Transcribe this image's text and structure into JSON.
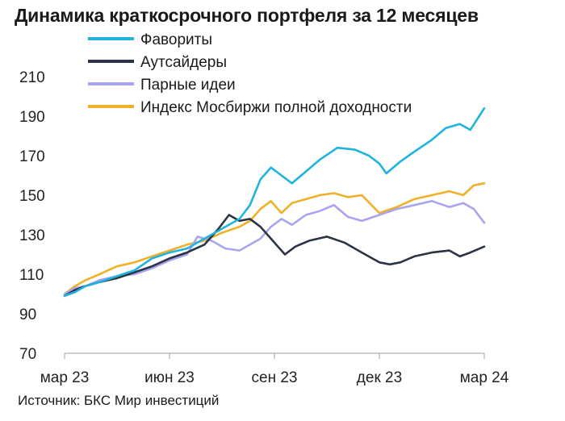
{
  "header": {
    "title": "Динамика краткосрочного портфеля за 12 месяцев"
  },
  "footer": {
    "source": "Источник: БКС Мир инвестиций"
  },
  "chart_data": {
    "type": "line",
    "title": "Динамика краткосрочного портфеля за 12 месяцев",
    "xlabel": "",
    "ylabel": "",
    "ylim": [
      70,
      210
    ],
    "yticks": [
      70,
      90,
      110,
      130,
      150,
      170,
      190,
      210
    ],
    "x_tick_labels": [
      "мар 23",
      "июн 23",
      "сен 23",
      "дек 23",
      "мар 24"
    ],
    "x_tick_months": [
      0,
      3,
      6,
      9,
      12
    ],
    "grid": false,
    "legend": "top",
    "series": [
      {
        "name": "Фавориты",
        "color": "#1fb3dd",
        "x": [
          0,
          0.3,
          0.6,
          1,
          1.5,
          2,
          2.5,
          3,
          3.5,
          4,
          4.5,
          5,
          5.3,
          5.6,
          5.9,
          6.2,
          6.5,
          6.9,
          7.3,
          7.8,
          8.3,
          8.7,
          9,
          9.2,
          9.6,
          10,
          10.5,
          10.9,
          11.3,
          11.6,
          12
        ],
        "y": [
          99,
          101,
          104,
          106,
          109,
          112,
          118,
          121,
          123,
          128,
          133,
          138,
          145,
          158,
          164,
          160,
          156,
          162,
          168,
          174,
          173,
          170,
          166,
          161,
          167,
          172,
          178,
          184,
          186,
          183,
          194
        ]
      },
      {
        "name": "Аутсайдеры",
        "color": "#2a3446",
        "x": [
          0,
          0.3,
          0.6,
          1,
          1.5,
          2,
          2.5,
          3,
          3.5,
          4,
          4.4,
          4.7,
          5,
          5.3,
          5.6,
          5.9,
          6.1,
          6.3,
          6.6,
          7,
          7.5,
          8,
          8.5,
          9,
          9.3,
          9.6,
          10,
          10.5,
          11,
          11.3,
          11.6,
          12
        ],
        "y": [
          99,
          102,
          104,
          106,
          108,
          111,
          114,
          118,
          121,
          125,
          133,
          140,
          137,
          138,
          134,
          128,
          124,
          120,
          124,
          127,
          129,
          126,
          121,
          116,
          115,
          116,
          119,
          121,
          122,
          119,
          121,
          124
        ]
      },
      {
        "name": "Парные идеи",
        "color": "#a8a4ee",
        "x": [
          0,
          0.3,
          0.6,
          1,
          1.5,
          2,
          2.5,
          3,
          3.5,
          3.8,
          4.2,
          4.6,
          5,
          5.3,
          5.6,
          5.9,
          6.2,
          6.5,
          6.9,
          7.3,
          7.7,
          8.1,
          8.5,
          9,
          9.5,
          10,
          10.5,
          11,
          11.4,
          11.7,
          12
        ],
        "y": [
          100,
          103,
          104,
          107,
          109,
          110,
          113,
          117,
          120,
          129,
          127,
          123,
          122,
          125,
          128,
          134,
          138,
          135,
          140,
          142,
          145,
          139,
          137,
          140,
          143,
          145,
          147,
          144,
          146,
          143,
          136
        ]
      },
      {
        "name": "Индекс Мосбиржи полной доходности",
        "color": "#f0b028",
        "x": [
          0,
          0.3,
          0.6,
          1,
          1.5,
          2,
          2.5,
          3,
          3.5,
          4,
          4.5,
          5,
          5.3,
          5.6,
          5.9,
          6.2,
          6.5,
          6.9,
          7.3,
          7.7,
          8.1,
          8.5,
          9,
          9.5,
          10,
          10.5,
          11,
          11.4,
          11.7,
          12
        ],
        "y": [
          100,
          104,
          107,
          110,
          114,
          116,
          119,
          122,
          125,
          127,
          131,
          134,
          137,
          143,
          147,
          141,
          146,
          148,
          150,
          151,
          149,
          150,
          141,
          144,
          148,
          150,
          152,
          150,
          155,
          156
        ]
      }
    ]
  }
}
